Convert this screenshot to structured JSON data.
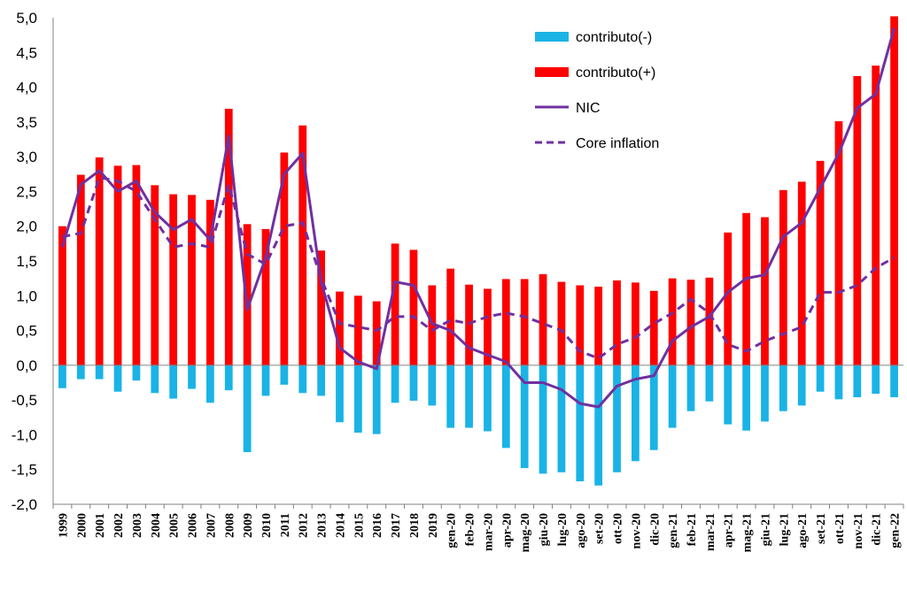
{
  "chart_data": {
    "type": "bar+line",
    "title": "",
    "xlabel": "",
    "ylabel": "",
    "ylim": [
      -2.0,
      5.0
    ],
    "ytick_step": 0.5,
    "grid": false,
    "legend_position": "top-right",
    "colors": {
      "contrib_neg": "#1AB3E6",
      "contrib_pos": "#FF0000",
      "nic": "#7030A0",
      "core": "#7030A0"
    },
    "categories": [
      "1999",
      "2000",
      "2001",
      "2002",
      "2003",
      "2004",
      "2005",
      "2006",
      "2007",
      "2008",
      "2009",
      "2010",
      "2011",
      "2012",
      "2013",
      "2014",
      "2015",
      "2016",
      "2017",
      "2018",
      "2019",
      "gen-20",
      "feb-20",
      "mar-20",
      "apr-20",
      "mag-20",
      "giu-20",
      "lug-20",
      "ago-20",
      "set-20",
      "ott-20",
      "nov-20",
      "dic-20",
      "gen-21",
      "feb-21",
      "mar-21",
      "apr-21",
      "mag-21",
      "giu-21",
      "lug-21",
      "ago-21",
      "set-21",
      "ott-21",
      "nov-21",
      "dic-21",
      "gen-22"
    ],
    "series": [
      {
        "name": "contributo(-)",
        "type": "bar",
        "values": [
          -0.33,
          -0.2,
          -0.2,
          -0.38,
          -0.22,
          -0.4,
          -0.48,
          -0.34,
          -0.54,
          -0.36,
          -1.25,
          -0.44,
          -0.28,
          -0.4,
          -0.44,
          -0.82,
          -0.97,
          -0.99,
          -0.54,
          -0.51,
          -0.58,
          -0.9,
          -0.9,
          -0.95,
          -1.19,
          -1.48,
          -1.56,
          -1.54,
          -1.67,
          -1.73,
          -1.54,
          -1.38,
          -1.22,
          -0.9,
          -0.66,
          -0.52,
          -0.85,
          -0.94,
          -0.81,
          -0.66,
          -0.58,
          -0.38,
          -0.49,
          -0.46,
          -0.41,
          -0.46
        ]
      },
      {
        "name": "contributo(+)",
        "type": "bar",
        "values": [
          2.0,
          2.74,
          2.99,
          2.87,
          2.88,
          2.59,
          2.46,
          2.45,
          2.38,
          3.69,
          2.03,
          1.96,
          3.06,
          3.45,
          1.65,
          1.06,
          1.0,
          0.92,
          1.75,
          1.66,
          1.15,
          1.39,
          1.16,
          1.1,
          1.24,
          1.24,
          1.31,
          1.2,
          1.15,
          1.13,
          1.22,
          1.19,
          1.07,
          1.25,
          1.23,
          1.26,
          1.91,
          2.19,
          2.13,
          2.52,
          2.64,
          2.94,
          3.51,
          4.16,
          4.31,
          5.02
        ]
      },
      {
        "name": "NIC",
        "type": "line",
        "values": [
          1.7,
          2.6,
          2.8,
          2.5,
          2.65,
          2.2,
          1.95,
          2.1,
          1.8,
          3.3,
          0.8,
          1.55,
          2.75,
          3.05,
          1.2,
          0.25,
          0.05,
          -0.05,
          1.2,
          1.15,
          0.6,
          0.5,
          0.25,
          0.15,
          0.05,
          -0.25,
          -0.25,
          -0.35,
          -0.55,
          -0.6,
          -0.3,
          -0.2,
          -0.15,
          0.35,
          0.55,
          0.7,
          1.05,
          1.25,
          1.3,
          1.85,
          2.05,
          2.55,
          3.05,
          3.7,
          3.9,
          4.85
        ]
      },
      {
        "name": "Core inflation",
        "type": "line",
        "dash": true,
        "values": [
          1.85,
          1.9,
          2.7,
          2.65,
          2.5,
          2.1,
          1.7,
          1.75,
          1.7,
          2.6,
          1.6,
          1.45,
          2.0,
          2.05,
          1.25,
          0.6,
          0.55,
          0.5,
          0.7,
          0.7,
          0.5,
          0.65,
          0.6,
          0.7,
          0.75,
          0.7,
          0.6,
          0.5,
          0.2,
          0.1,
          0.3,
          0.4,
          0.6,
          0.75,
          0.95,
          0.75,
          0.3,
          0.2,
          0.35,
          0.45,
          0.55,
          1.05,
          1.05,
          1.15,
          1.4,
          1.55
        ]
      }
    ]
  }
}
